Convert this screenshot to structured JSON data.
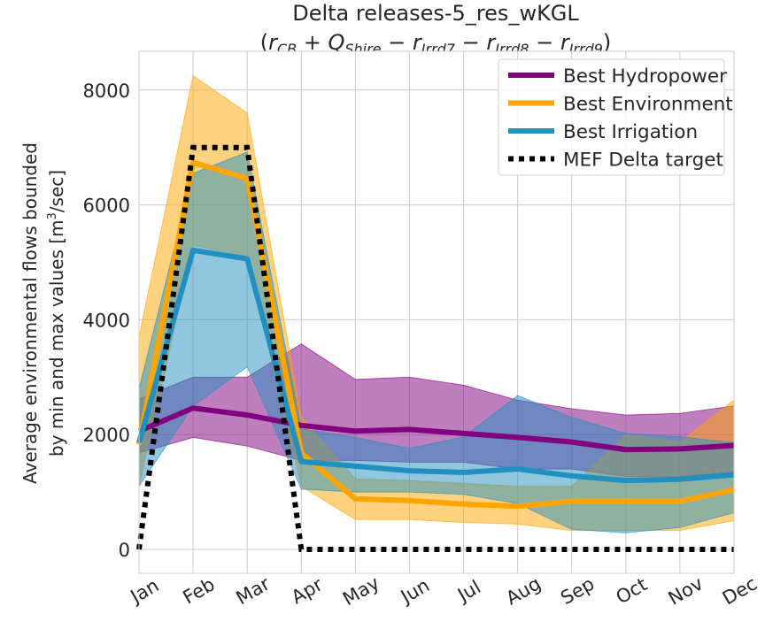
{
  "chart_data": {
    "type": "line",
    "title": "Delta releases-5_res_wKGL",
    "subtitle": {
      "open": "(",
      "r_cb": "r",
      "r_cb_sub": "CB",
      "plus_q": " + Q",
      "q_sub": "Shire",
      "minus_r7": " − r",
      "r7_sub": "Irrd7",
      "minus_r8": " − r",
      "r8_sub": "Irrd8",
      "minus_r9": " − r",
      "r9_sub": "Irrd9",
      "close": ")"
    },
    "ylabel_line1": "Average environmental flows bounded",
    "ylabel_line2_pre": "by min and max values [m",
    "ylabel_sup": "3",
    "ylabel_line2_post": "/sec]",
    "categories": [
      "Jan",
      "Feb",
      "Mar",
      "Apr",
      "May",
      "Jun",
      "Jul",
      "Aug",
      "Sep",
      "Oct",
      "Nov",
      "Dec"
    ],
    "yticks": [
      "0",
      "2000",
      "4000",
      "6000",
      "8000"
    ],
    "ylim": [
      -400,
      8700
    ],
    "grid": true,
    "legend_position": "top-right",
    "series": [
      {
        "name": "Best Hydropower",
        "color": "#800080",
        "values": [
          2060,
          2460,
          2340,
          2160,
          2060,
          2090,
          2020,
          1950,
          1870,
          1740,
          1750,
          1810
        ],
        "min": [
          1680,
          1950,
          1800,
          1550,
          1550,
          1520,
          1520,
          1400,
          1400,
          1270,
          1270,
          1350
        ],
        "max": [
          2620,
          3000,
          3000,
          3580,
          2960,
          3000,
          2860,
          2600,
          2450,
          2340,
          2370,
          2500
        ]
      },
      {
        "name": "Best Environment",
        "color": "#FFA500",
        "values": [
          1830,
          6740,
          6460,
          1680,
          880,
          850,
          790,
          750,
          840,
          840,
          840,
          1040
        ],
        "min": [
          1100,
          5300,
          5100,
          1100,
          520,
          520,
          470,
          440,
          330,
          330,
          330,
          500
        ],
        "max": [
          3700,
          8250,
          7600,
          2300,
          1230,
          1200,
          1150,
          1100,
          1100,
          2000,
          1870,
          2600
        ]
      },
      {
        "name": "Best Irrigation",
        "color": "#2190C0",
        "values": [
          1860,
          5210,
          5060,
          1530,
          1450,
          1370,
          1340,
          1400,
          1280,
          1200,
          1220,
          1300
        ],
        "min": [
          1100,
          2500,
          3180,
          1050,
          1000,
          1000,
          960,
          800,
          350,
          290,
          380,
          640
        ],
        "max": [
          2800,
          6550,
          6920,
          2100,
          1950,
          1760,
          1960,
          2680,
          2300,
          2020,
          1960,
          1860
        ]
      },
      {
        "name": "MEF Delta target",
        "color": "#000000",
        "style": "dotted",
        "values": [
          0,
          7000,
          7000,
          0,
          0,
          0,
          0,
          0,
          0,
          0,
          0,
          0
        ]
      }
    ]
  }
}
